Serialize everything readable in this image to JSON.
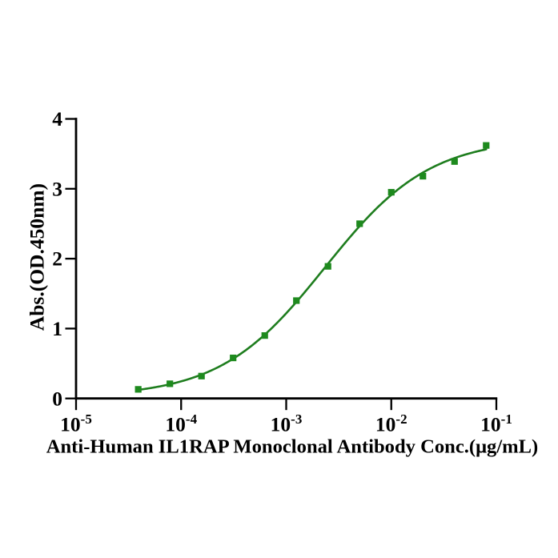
{
  "figure": {
    "background": "#ffffff"
  },
  "chart_data": {
    "type": "scatter",
    "title": "",
    "xlabel": "Anti-Human IL1RAP Monoclonal Antibody Conc.(μg/mL)",
    "ylabel": "Abs.(OD.450nm)",
    "x_scale": "log10",
    "xlim": [
      1e-05,
      0.1
    ],
    "ylim": [
      0,
      4
    ],
    "grid": "off",
    "legend": "none",
    "x": [
      3.90625e-05,
      7.8125e-05,
      0.00015625,
      0.0003125,
      0.000625,
      0.00125,
      0.0025,
      0.005,
      0.01,
      0.02,
      0.04,
      0.08
    ],
    "y": [
      0.13,
      0.21,
      0.32,
      0.58,
      0.9,
      1.4,
      1.89,
      2.5,
      2.95,
      3.18,
      3.39,
      3.62
    ],
    "fit_curve": {
      "model": "4PL",
      "bottom": 0.0204,
      "top": 3.7279,
      "ec50": 0.0023388,
      "hill": 0.8706,
      "x_start": 3.90625e-05,
      "x_end": 0.08
    },
    "x_ticks": [
      {
        "value": 1e-05,
        "base": "10",
        "exp": "-5"
      },
      {
        "value": 0.0001,
        "base": "10",
        "exp": "-4"
      },
      {
        "value": 0.001,
        "base": "10",
        "exp": "-3"
      },
      {
        "value": 0.01,
        "base": "10",
        "exp": "-2"
      },
      {
        "value": 0.1,
        "base": "10",
        "exp": "-1"
      }
    ],
    "y_ticks": [
      {
        "value": 0,
        "label": "0"
      },
      {
        "value": 1,
        "label": "1"
      },
      {
        "value": 2,
        "label": "2"
      },
      {
        "value": 3,
        "label": "3"
      },
      {
        "value": 4,
        "label": "4"
      }
    ],
    "marker_shape": "square",
    "marker_color": "#1e8a1e",
    "line_color": "#1e7d1e",
    "axis_color": "#000000",
    "text_color": "#000000"
  }
}
